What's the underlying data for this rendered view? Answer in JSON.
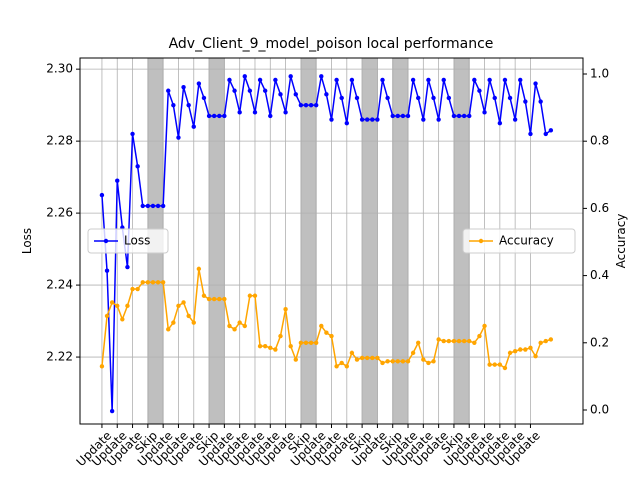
{
  "chart_data": {
    "type": "line",
    "title": "Adv_Client_9_model_poison local performance",
    "ylabel": "Loss",
    "y2label": "Accuracy",
    "x": [
      0,
      1,
      2,
      3,
      4,
      5,
      6,
      7,
      8,
      9,
      10,
      11,
      12,
      13,
      14,
      15,
      16,
      17,
      18,
      19,
      20,
      21,
      22,
      23,
      24,
      25,
      26,
      27,
      28,
      29,
      30,
      31,
      32,
      33,
      34,
      35,
      36,
      37,
      38,
      39,
      40,
      41,
      42,
      43,
      44,
      45,
      46,
      47,
      48,
      49,
      50,
      51,
      52,
      53,
      54,
      55,
      56,
      57,
      58,
      59,
      60,
      61,
      62,
      63,
      64,
      65,
      66,
      67,
      68,
      69,
      70,
      71,
      72,
      73,
      74,
      75,
      76,
      77,
      78,
      79,
      80,
      81,
      82,
      83,
      84,
      85,
      86,
      87,
      88
    ],
    "xlim": [
      -4.3,
      94.3
    ],
    "xticks": [
      {
        "value": 0,
        "label": "Update"
      },
      {
        "value": 3,
        "label": "Update"
      },
      {
        "value": 6,
        "label": "Update"
      },
      {
        "value": 9,
        "label": "Skip"
      },
      {
        "value": 12,
        "label": "Update"
      },
      {
        "value": 15,
        "label": "Update"
      },
      {
        "value": 18,
        "label": "Update"
      },
      {
        "value": 21,
        "label": "Skip"
      },
      {
        "value": 24,
        "label": "Update"
      },
      {
        "value": 27,
        "label": "Update"
      },
      {
        "value": 30,
        "label": "Update"
      },
      {
        "value": 33,
        "label": "Update"
      },
      {
        "value": 36,
        "label": "Update"
      },
      {
        "value": 39,
        "label": "Skip"
      },
      {
        "value": 42,
        "label": "Update"
      },
      {
        "value": 45,
        "label": "Update"
      },
      {
        "value": 48,
        "label": "Update"
      },
      {
        "value": 51,
        "label": "Skip"
      },
      {
        "value": 54,
        "label": "Update"
      },
      {
        "value": 57,
        "label": "Skip"
      },
      {
        "value": 60,
        "label": "Update"
      },
      {
        "value": 63,
        "label": "Update"
      },
      {
        "value": 66,
        "label": "Update"
      },
      {
        "value": 69,
        "label": "Skip"
      },
      {
        "value": 72,
        "label": "Update"
      },
      {
        "value": 75,
        "label": "Update"
      },
      {
        "value": 78,
        "label": "Update"
      },
      {
        "value": 81,
        "label": "Update"
      },
      {
        "value": 84,
        "label": "Update"
      }
    ],
    "ylim": [
      2.2014,
      2.3031
    ],
    "yticks": [
      2.22,
      2.24,
      2.26,
      2.28,
      {
        "value": 2.3,
        "label": "2.30"
      }
    ],
    "y2lim": [
      -0.0417,
      1.0476
    ],
    "y2ticks": [
      {
        "value": 0,
        "label": "0.0"
      },
      0.2,
      0.4,
      0.6,
      0.8,
      {
        "value": 1,
        "label": "1.0"
      }
    ],
    "grid": true,
    "series": [
      {
        "name": "Loss",
        "color": "#0000ff",
        "legend_loc": "center left",
        "values": [
          2.265,
          2.244,
          2.205,
          2.269,
          2.256,
          2.245,
          2.282,
          2.273,
          2.262,
          2.262,
          2.262,
          2.262,
          2.262,
          2.294,
          2.29,
          2.281,
          2.295,
          2.29,
          2.284,
          2.296,
          2.292,
          2.287,
          2.287,
          2.287,
          2.287,
          2.297,
          2.294,
          2.288,
          2.298,
          2.294,
          2.288,
          2.297,
          2.294,
          2.287,
          2.297,
          2.293,
          2.288,
          2.298,
          2.293,
          2.29,
          2.29,
          2.29,
          2.29,
          2.298,
          2.293,
          2.286,
          2.297,
          2.292,
          2.285,
          2.297,
          2.292,
          2.286,
          2.286,
          2.286,
          2.286,
          2.297,
          2.292,
          2.287,
          2.287,
          2.287,
          2.287,
          2.297,
          2.292,
          2.286,
          2.297,
          2.292,
          2.286,
          2.297,
          2.292,
          2.287,
          2.287,
          2.287,
          2.287,
          2.297,
          2.294,
          2.288,
          2.297,
          2.292,
          2.285,
          2.297,
          2.292,
          2.286,
          2.297,
          2.291,
          2.282,
          2.296,
          2.291,
          2.282,
          2.283
        ]
      },
      {
        "name": "Accuracy",
        "color": "#ffa500",
        "axis": "y2",
        "legend_loc": "center right",
        "values": [
          0.13,
          0.28,
          0.32,
          0.31,
          0.27,
          0.31,
          0.36,
          0.36,
          0.38,
          0.38,
          0.38,
          0.38,
          0.38,
          0.24,
          0.26,
          0.31,
          0.32,
          0.28,
          0.26,
          0.42,
          0.34,
          0.33,
          0.33,
          0.33,
          0.33,
          0.25,
          0.24,
          0.26,
          0.25,
          0.34,
          0.34,
          0.19,
          0.19,
          0.185,
          0.18,
          0.22,
          0.3,
          0.19,
          0.15,
          0.2,
          0.2,
          0.2,
          0.2,
          0.25,
          0.23,
          0.22,
          0.13,
          0.14,
          0.13,
          0.17,
          0.15,
          0.155,
          0.155,
          0.155,
          0.155,
          0.14,
          0.145,
          0.145,
          0.145,
          0.145,
          0.145,
          0.17,
          0.2,
          0.15,
          0.14,
          0.145,
          0.21,
          0.205,
          0.205,
          0.205,
          0.205,
          0.205,
          0.205,
          0.2,
          0.22,
          0.25,
          0.135,
          0.135,
          0.135,
          0.125,
          0.17,
          0.175,
          0.18,
          0.18,
          0.185,
          0.16,
          0.2,
          0.205,
          0.21
        ]
      }
    ]
  }
}
